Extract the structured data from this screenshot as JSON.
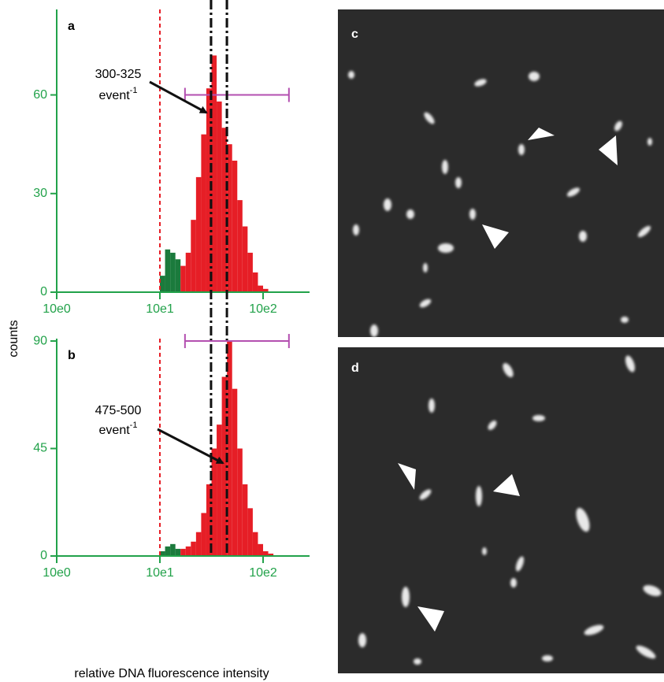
{
  "axis_labels": {
    "y": "counts",
    "x": "relative DNA fluorescence intensity"
  },
  "chart_data": [
    {
      "type": "histogram",
      "panel": "a",
      "log_x": true,
      "xlim": [
        1,
        282
      ],
      "xticks": [
        {
          "value": 1,
          "label": "10e0"
        },
        {
          "value": 10,
          "label": "10e1"
        },
        {
          "value": 100,
          "label": "10e2"
        }
      ],
      "ylim": [
        0,
        86
      ],
      "yticks": [
        0,
        30,
        60
      ],
      "bins": [
        10.0,
        11.22,
        12.59,
        14.13,
        15.85,
        17.78,
        19.95,
        22.39,
        25.12,
        28.18,
        31.62,
        35.48,
        39.81,
        44.67,
        50.12,
        56.23,
        63.1,
        70.79,
        79.43,
        89.13,
        100,
        112.2
      ],
      "values": [
        5,
        13,
        12,
        10,
        8,
        12,
        22,
        35,
        48,
        62,
        72,
        58,
        50,
        45,
        40,
        28,
        20,
        12,
        6,
        2,
        1
      ],
      "colors": [
        "#1b7a3c",
        "#1b7a3c",
        "#1b7a3c",
        "#1b7a3c",
        "#e61e26",
        "#e61e26",
        "#e61e26",
        "#e61e26",
        "#e61e26",
        "#e61e26",
        "#e61e26",
        "#e61e26",
        "#e61e26",
        "#e61e26",
        "#e61e26",
        "#e61e26",
        "#e61e26",
        "#e61e26",
        "#e61e26",
        "#e61e26",
        "#e61e26"
      ],
      "threshold": 10,
      "reference_lines": [
        31.3,
        44.6
      ],
      "range_marker": {
        "from": 17.5,
        "to": 178,
        "y": 60,
        "color": "#b34fb0"
      },
      "annotation": {
        "text": "300-325",
        "unit": "event",
        "power": "-1"
      }
    },
    {
      "type": "histogram",
      "panel": "b",
      "log_x": true,
      "xlim": [
        1,
        282
      ],
      "xticks": [
        {
          "value": 1,
          "label": "10e0"
        },
        {
          "value": 10,
          "label": "10e1"
        },
        {
          "value": 100,
          "label": "10e2"
        }
      ],
      "ylim": [
        0,
        91
      ],
      "yticks": [
        0,
        45,
        90
      ],
      "bins": [
        10.0,
        11.22,
        12.59,
        14.13,
        15.85,
        17.78,
        19.95,
        22.39,
        25.12,
        28.18,
        31.62,
        35.48,
        39.81,
        44.67,
        50.12,
        56.23,
        63.1,
        70.79,
        79.43,
        89.13,
        100,
        112.2,
        125.9
      ],
      "values": [
        2,
        4,
        5,
        3,
        3,
        4,
        6,
        10,
        18,
        30,
        45,
        55,
        75,
        90,
        70,
        45,
        30,
        20,
        10,
        5,
        2,
        1
      ],
      "colors": [
        "#1b7a3c",
        "#1b7a3c",
        "#1b7a3c",
        "#1b7a3c",
        "#e61e26",
        "#e61e26",
        "#e61e26",
        "#e61e26",
        "#e61e26",
        "#e61e26",
        "#e61e26",
        "#e61e26",
        "#e61e26",
        "#e61e26",
        "#e61e26",
        "#e61e26",
        "#e61e26",
        "#e61e26",
        "#e61e26",
        "#e61e26",
        "#e61e26",
        "#e61e26"
      ],
      "threshold": 10,
      "reference_lines": [
        31.3,
        44.6
      ],
      "range_marker": {
        "from": 17.5,
        "to": 178,
        "y": 90,
        "color": "#b34fb0"
      },
      "annotation": {
        "text": "475-500",
        "unit": "event",
        "power": "-1"
      }
    }
  ],
  "images": [
    {
      "panel": "c"
    },
    {
      "panel": "d"
    }
  ]
}
